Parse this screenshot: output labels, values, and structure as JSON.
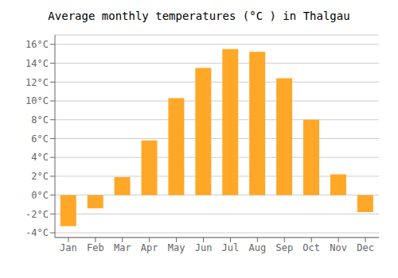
{
  "chart_data": {
    "type": "bar",
    "title": "Average monthly temperatures (°C ) in Thalgau",
    "categories": [
      "Jan",
      "Feb",
      "Mar",
      "Apr",
      "May",
      "Jun",
      "Jul",
      "Aug",
      "Sep",
      "Oct",
      "Nov",
      "Dec"
    ],
    "values": [
      -3.3,
      -1.4,
      1.9,
      5.8,
      10.3,
      13.5,
      15.5,
      15.2,
      12.4,
      8.0,
      2.2,
      -1.8
    ],
    "color": "#FFA828",
    "ylim": [
      -4.5,
      17
    ],
    "yticks": [
      {
        "value": -4,
        "label": "-4°C"
      },
      {
        "value": -2,
        "label": "-2°C"
      },
      {
        "value": 0,
        "label": "0°C"
      },
      {
        "value": 2,
        "label": "2°C"
      },
      {
        "value": 4,
        "label": "4°C"
      },
      {
        "value": 6,
        "label": "6°C"
      },
      {
        "value": 8,
        "label": "8°C"
      },
      {
        "value": 10,
        "label": "10°C"
      },
      {
        "value": 12,
        "label": "12°C"
      },
      {
        "value": 14,
        "label": "14°C"
      },
      {
        "value": 16,
        "label": "16°C"
      }
    ],
    "grid": true
  }
}
